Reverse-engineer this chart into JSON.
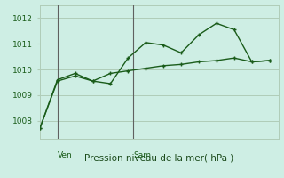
{
  "line1_x": [
    0,
    1,
    2,
    3,
    4,
    5,
    6,
    7,
    8,
    9,
    10,
    11,
    12,
    13
  ],
  "line1_y": [
    1007.7,
    1009.6,
    1009.85,
    1009.55,
    1009.45,
    1010.45,
    1011.05,
    1010.95,
    1010.65,
    1011.35,
    1011.8,
    1011.55,
    1010.3,
    1010.35
  ],
  "line2_x": [
    0,
    1,
    2,
    3,
    4,
    5,
    6,
    7,
    8,
    9,
    10,
    11,
    12,
    13
  ],
  "line2_y": [
    1007.7,
    1009.55,
    1009.75,
    1009.55,
    1009.85,
    1009.95,
    1010.05,
    1010.15,
    1010.2,
    1010.3,
    1010.35,
    1010.45,
    1010.3,
    1010.35
  ],
  "line_color": "#1a5c1a",
  "bg_color": "#ceeee4",
  "grid_color": "#b0ccb8",
  "ven_x": 1.0,
  "sam_x": 5.3,
  "xlabel": "Pression niveau de la mer( hPa )",
  "xlabel_color": "#1a4a1a",
  "yticks": [
    1008,
    1009,
    1010,
    1011,
    1012
  ],
  "ylim": [
    1007.3,
    1012.5
  ],
  "xlim": [
    0,
    13.5
  ],
  "vline_color": "#606060",
  "tick_fontsize": 6.5,
  "xlabel_fontsize": 7.5
}
